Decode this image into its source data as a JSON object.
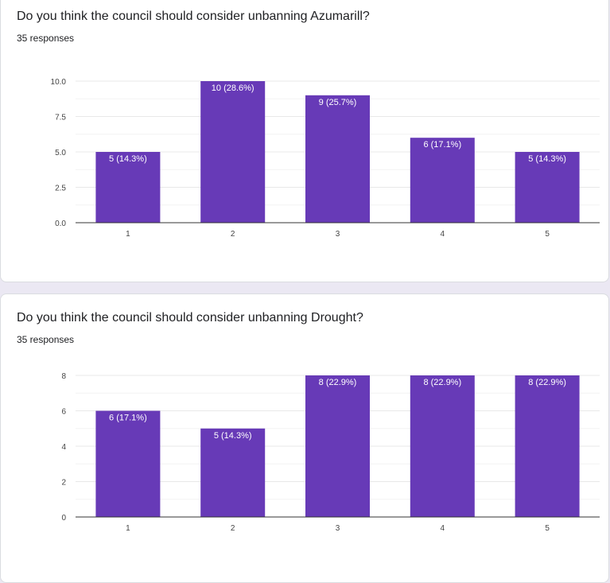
{
  "questions": [
    {
      "title": "Do you think the council should consider unbanning Azumarill?",
      "responses": "35 responses"
    },
    {
      "title": "Do you think the council should consider unbanning Drought?",
      "responses": "35 responses"
    }
  ],
  "colors": {
    "bar": "#673ab7",
    "grid": "#e8e8e8",
    "axis": "#333333",
    "tick_text": "#444444",
    "bar_label_text": "#ffffff"
  },
  "chart_data": [
    {
      "type": "bar",
      "categories": [
        "1",
        "2",
        "3",
        "4",
        "5"
      ],
      "values": [
        5,
        10,
        9,
        6,
        5
      ],
      "bar_labels": [
        "5 (14.3%)",
        "10 (28.6%)",
        "9 (25.7%)",
        "6 (17.1%)",
        "5 (14.3%)"
      ],
      "yticks": [
        "0.0",
        "2.5",
        "5.0",
        "7.5",
        "10.0"
      ],
      "ylim": [
        0,
        10
      ],
      "grid": true,
      "title": "",
      "xlabel": "",
      "ylabel": ""
    },
    {
      "type": "bar",
      "categories": [
        "1",
        "2",
        "3",
        "4",
        "5"
      ],
      "values": [
        6,
        5,
        8,
        8,
        8
      ],
      "bar_labels": [
        "6 (17.1%)",
        "5 (14.3%)",
        "8 (22.9%)",
        "8 (22.9%)",
        "8 (22.9%)"
      ],
      "yticks": [
        "0",
        "2",
        "4",
        "6",
        "8"
      ],
      "ylim": [
        0,
        8
      ],
      "grid": true,
      "title": "",
      "xlabel": "",
      "ylabel": ""
    }
  ]
}
